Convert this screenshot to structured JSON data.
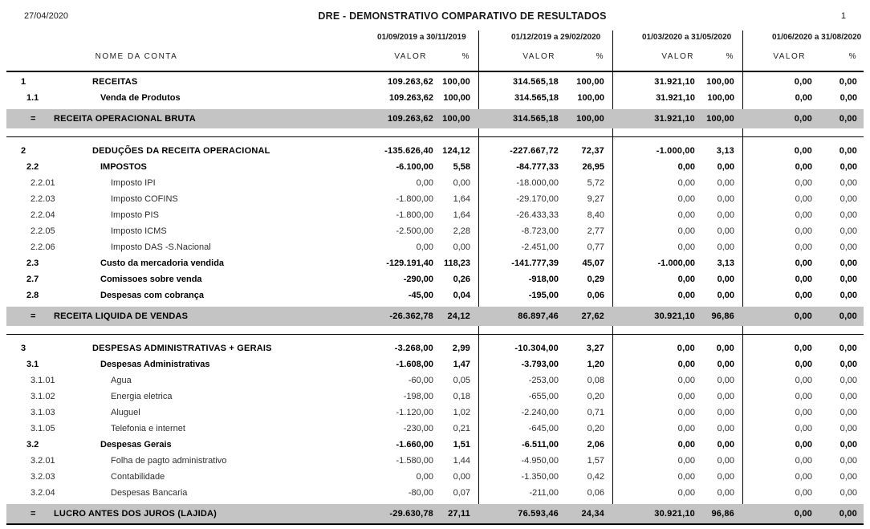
{
  "header": {
    "report_date": "27/04/2020",
    "title": "DRE - DEMONSTRATIVO COMPARATIVO DE RESULTADOS",
    "page_number": "1"
  },
  "columns": {
    "name_header": "NOME DA CONTA",
    "value_header": "VALOR",
    "percent_header": "%",
    "periods": [
      "01/09/2019 a 30/11/2019",
      "01/12/2019 a 29/02/2020",
      "01/03/2020 a 31/05/2020",
      "01/06/2020 a 31/08/2020"
    ]
  },
  "colors": {
    "total_row_bg": "#c4c4c4",
    "line_color": "#000000"
  },
  "report": {
    "sections": [
      {
        "rows": [
          {
            "code": "1",
            "name": "RECEITAS",
            "level": 1,
            "values": [
              [
                "109.263,62",
                "100,00"
              ],
              [
                "314.565,18",
                "100,00"
              ],
              [
                "31.921,10",
                "100,00"
              ],
              [
                "0,00",
                "0,00"
              ]
            ]
          },
          {
            "code": "1.1",
            "name": "Venda de Produtos",
            "level": 2,
            "values": [
              [
                "109.263,62",
                "100,00"
              ],
              [
                "314.565,18",
                "100,00"
              ],
              [
                "31.921,10",
                "100,00"
              ],
              [
                "0,00",
                "0,00"
              ]
            ]
          }
        ],
        "total": {
          "symbol": "=",
          "name": "RECEITA OPERACIONAL BRUTA",
          "values": [
            [
              "109.263,62",
              "100,00"
            ],
            [
              "314.565,18",
              "100,00"
            ],
            [
              "31.921,10",
              "100,00"
            ],
            [
              "0,00",
              "0,00"
            ]
          ]
        }
      },
      {
        "rows": [
          {
            "code": "2",
            "name": "DEDUÇÕES DA RECEITA OPERACIONAL",
            "level": 1,
            "values": [
              [
                "-135.626,40",
                "124,12"
              ],
              [
                "-227.667,72",
                "72,37"
              ],
              [
                "-1.000,00",
                "3,13"
              ],
              [
                "0,00",
                "0,00"
              ]
            ]
          },
          {
            "code": "2.2",
            "name": "IMPOSTOS",
            "level": 2,
            "values": [
              [
                "-6.100,00",
                "5,58"
              ],
              [
                "-84.777,33",
                "26,95"
              ],
              [
                "0,00",
                "0,00"
              ],
              [
                "0,00",
                "0,00"
              ]
            ]
          },
          {
            "code": "2.2.01",
            "name": "Imposto IPI",
            "level": 3,
            "values": [
              [
                "0,00",
                "0,00"
              ],
              [
                "-18.000,00",
                "5,72"
              ],
              [
                "0,00",
                "0,00"
              ],
              [
                "0,00",
                "0,00"
              ]
            ]
          },
          {
            "code": "2.2.03",
            "name": "Imposto COFINS",
            "level": 3,
            "values": [
              [
                "-1.800,00",
                "1,64"
              ],
              [
                "-29.170,00",
                "9,27"
              ],
              [
                "0,00",
                "0,00"
              ],
              [
                "0,00",
                "0,00"
              ]
            ]
          },
          {
            "code": "2.2.04",
            "name": "Imposto PIS",
            "level": 3,
            "values": [
              [
                "-1.800,00",
                "1,64"
              ],
              [
                "-26.433,33",
                "8,40"
              ],
              [
                "0,00",
                "0,00"
              ],
              [
                "0,00",
                "0,00"
              ]
            ]
          },
          {
            "code": "2.2.05",
            "name": "Imposto ICMS",
            "level": 3,
            "values": [
              [
                "-2.500,00",
                "2,28"
              ],
              [
                "-8.723,00",
                "2,77"
              ],
              [
                "0,00",
                "0,00"
              ],
              [
                "0,00",
                "0,00"
              ]
            ]
          },
          {
            "code": "2.2.06",
            "name": "Imposto DAS -S.Nacional",
            "level": 3,
            "values": [
              [
                "0,00",
                "0,00"
              ],
              [
                "-2.451,00",
                "0,77"
              ],
              [
                "0,00",
                "0,00"
              ],
              [
                "0,00",
                "0,00"
              ]
            ]
          },
          {
            "code": "2.3",
            "name": "Custo da mercadoria vendida",
            "level": 2,
            "values": [
              [
                "-129.191,40",
                "118,23"
              ],
              [
                "-141.777,39",
                "45,07"
              ],
              [
                "-1.000,00",
                "3,13"
              ],
              [
                "0,00",
                "0,00"
              ]
            ]
          },
          {
            "code": "2.7",
            "name": "Comissoes sobre venda",
            "level": 2,
            "values": [
              [
                "-290,00",
                "0,26"
              ],
              [
                "-918,00",
                "0,29"
              ],
              [
                "0,00",
                "0,00"
              ],
              [
                "0,00",
                "0,00"
              ]
            ]
          },
          {
            "code": "2.8",
            "name": "Despesas com cobrança",
            "level": 2,
            "values": [
              [
                "-45,00",
                "0,04"
              ],
              [
                "-195,00",
                "0,06"
              ],
              [
                "0,00",
                "0,00"
              ],
              [
                "0,00",
                "0,00"
              ]
            ]
          }
        ],
        "total": {
          "symbol": "=",
          "name": "RECEITA LIQUIDA DE VENDAS",
          "values": [
            [
              "-26.362,78",
              "24,12"
            ],
            [
              "86.897,46",
              "27,62"
            ],
            [
              "30.921,10",
              "96,86"
            ],
            [
              "0,00",
              "0,00"
            ]
          ]
        }
      },
      {
        "rows": [
          {
            "code": "3",
            "name": "DESPESAS ADMINISTRATIVAS + GERAIS",
            "level": 1,
            "values": [
              [
                "-3.268,00",
                "2,99"
              ],
              [
                "-10.304,00",
                "3,27"
              ],
              [
                "0,00",
                "0,00"
              ],
              [
                "0,00",
                "0,00"
              ]
            ]
          },
          {
            "code": "3.1",
            "name": "Despesas Administrativas",
            "level": 2,
            "values": [
              [
                "-1.608,00",
                "1,47"
              ],
              [
                "-3.793,00",
                "1,20"
              ],
              [
                "0,00",
                "0,00"
              ],
              [
                "0,00",
                "0,00"
              ]
            ]
          },
          {
            "code": "3.1.01",
            "name": "Agua",
            "level": 3,
            "values": [
              [
                "-60,00",
                "0,05"
              ],
              [
                "-253,00",
                "0,08"
              ],
              [
                "0,00",
                "0,00"
              ],
              [
                "0,00",
                "0,00"
              ]
            ]
          },
          {
            "code": "3.1.02",
            "name": "Energia eletrica",
            "level": 3,
            "values": [
              [
                "-198,00",
                "0,18"
              ],
              [
                "-655,00",
                "0,20"
              ],
              [
                "0,00",
                "0,00"
              ],
              [
                "0,00",
                "0,00"
              ]
            ]
          },
          {
            "code": "3.1.03",
            "name": "Aluguel",
            "level": 3,
            "values": [
              [
                "-1.120,00",
                "1,02"
              ],
              [
                "-2.240,00",
                "0,71"
              ],
              [
                "0,00",
                "0,00"
              ],
              [
                "0,00",
                "0,00"
              ]
            ]
          },
          {
            "code": "3.1.05",
            "name": "Telefonia e internet",
            "level": 3,
            "values": [
              [
                "-230,00",
                "0,21"
              ],
              [
                "-645,00",
                "0,20"
              ],
              [
                "0,00",
                "0,00"
              ],
              [
                "0,00",
                "0,00"
              ]
            ]
          },
          {
            "code": "3.2",
            "name": "Despesas Gerais",
            "level": 2,
            "values": [
              [
                "-1.660,00",
                "1,51"
              ],
              [
                "-6.511,00",
                "2,06"
              ],
              [
                "0,00",
                "0,00"
              ],
              [
                "0,00",
                "0,00"
              ]
            ]
          },
          {
            "code": "3.2.01",
            "name": "Folha de pagto administrativo",
            "level": 3,
            "values": [
              [
                "-1.580,00",
                "1,44"
              ],
              [
                "-4.950,00",
                "1,57"
              ],
              [
                "0,00",
                "0,00"
              ],
              [
                "0,00",
                "0,00"
              ]
            ]
          },
          {
            "code": "3.2.03",
            "name": "Contabilidade",
            "level": 3,
            "values": [
              [
                "0,00",
                "0,00"
              ],
              [
                "-1.350,00",
                "0,42"
              ],
              [
                "0,00",
                "0,00"
              ],
              [
                "0,00",
                "0,00"
              ]
            ]
          },
          {
            "code": "3.2.04",
            "name": "Despesas Bancaria",
            "level": 3,
            "values": [
              [
                "-80,00",
                "0,07"
              ],
              [
                "-211,00",
                "0,06"
              ],
              [
                "0,00",
                "0,00"
              ],
              [
                "0,00",
                "0,00"
              ]
            ]
          }
        ],
        "total": {
          "symbol": "=",
          "name": "LUCRO ANTES DOS JUROS (LAJIDA)",
          "values": [
            [
              "-29.630,78",
              "27,11"
            ],
            [
              "76.593,46",
              "24,34"
            ],
            [
              "30.921,10",
              "96,86"
            ],
            [
              "0,00",
              "0,00"
            ]
          ]
        }
      }
    ]
  }
}
